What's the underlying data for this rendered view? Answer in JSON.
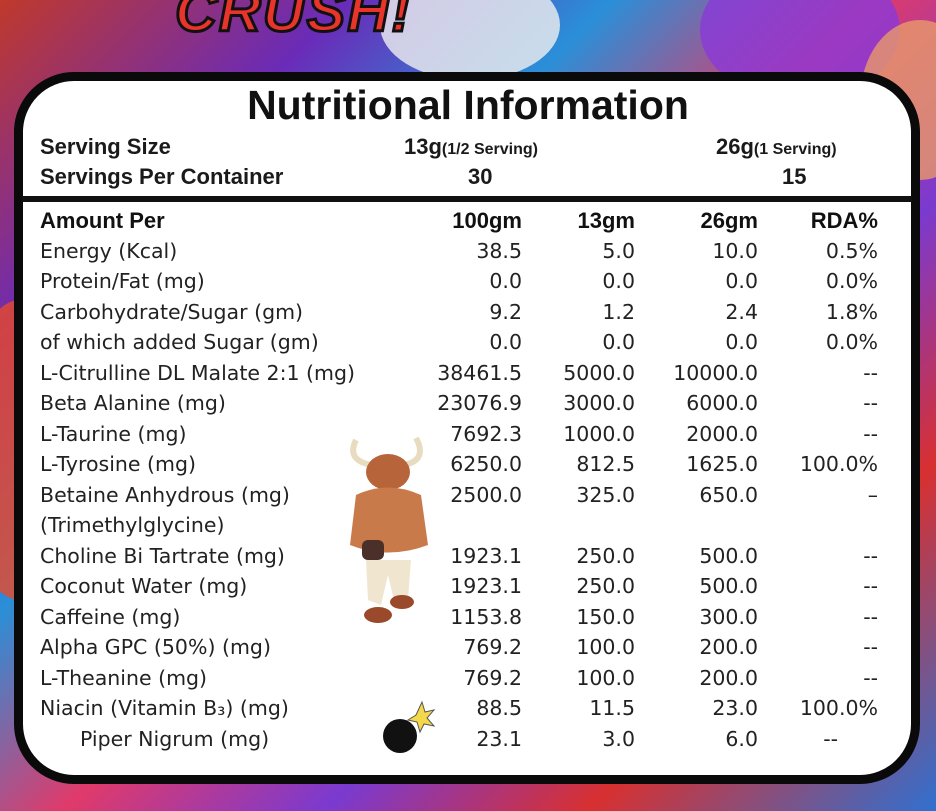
{
  "background_text": "CRUSH!",
  "title": "Nutritional Information",
  "serving": {
    "size_label": "Serving Size",
    "size_half": "13g",
    "size_half_note": "(1/2 Serving)",
    "size_full": "26g",
    "size_full_note": "(1 Serving)",
    "per_container_label": "Servings Per Container",
    "per_container_half": "30",
    "per_container_full": "15"
  },
  "table": {
    "headers": [
      "Amount Per",
      "100gm",
      "13gm",
      "26gm",
      "RDA%"
    ],
    "rows": [
      [
        "Energy (Kcal)",
        "38.5",
        "5.0",
        "10.0",
        "0.5%"
      ],
      [
        "Protein/Fat (mg)",
        "0.0",
        "0.0",
        "0.0",
        "0.0%"
      ],
      [
        "Carbohydrate/Sugar (gm)",
        "9.2",
        "1.2",
        "2.4",
        "1.8%"
      ],
      [
        "of which added Sugar (gm)",
        "0.0",
        "0.0",
        "0.0",
        "0.0%"
      ],
      [
        "L-Citrulline DL Malate 2:1 (mg)",
        "38461.5",
        "5000.0",
        "10000.0",
        "--"
      ],
      [
        "Beta Alanine (mg)",
        "23076.9",
        "3000.0",
        "6000.0",
        "--"
      ],
      [
        "L-Taurine (mg)",
        "7692.3",
        "1000.0",
        "2000.0",
        "--"
      ],
      [
        "L-Tyrosine (mg)",
        "6250.0",
        "812.5",
        "1625.0",
        "100.0%"
      ],
      [
        "Betaine Anhydrous (mg)",
        "2500.0",
        "325.0",
        "650.0",
        "–"
      ],
      [
        "(Trimethylglycine)",
        "",
        "",
        "",
        ""
      ],
      [
        "Choline Bi Tartrate (mg)",
        "1923.1",
        "250.0",
        "500.0",
        "--"
      ],
      [
        "Coconut Water (mg)",
        "1923.1",
        "250.0",
        "500.0",
        "--"
      ],
      [
        "Caffeine (mg)",
        "1153.8",
        "150.0",
        "300.0",
        "--"
      ],
      [
        "Alpha GPC (50%) (mg)",
        "769.2",
        "100.0",
        "200.0",
        "--"
      ],
      [
        "L-Theanine (mg)",
        "769.2",
        "100.0",
        "200.0",
        "--"
      ],
      [
        "Niacin (Vitamin B₃) (mg)",
        "88.5",
        "11.5",
        "23.0",
        "100.0%"
      ],
      [
        "Piper Nigrum (mg)",
        "23.1",
        "3.0",
        "6.0",
        "--"
      ]
    ]
  },
  "icons": {
    "mascot": "bull-mascot-icon",
    "bomb": "bomb-icon"
  }
}
